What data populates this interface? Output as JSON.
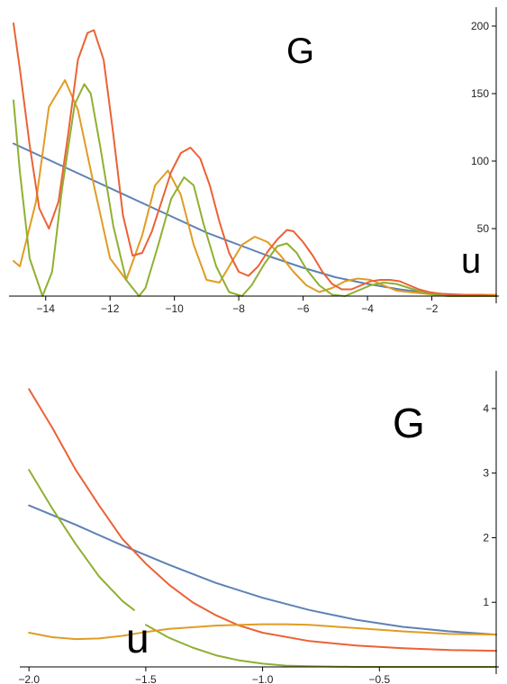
{
  "colors": {
    "blue": "#5E81B5",
    "orange": "#E19C24",
    "green": "#8FB032",
    "red": "#EB6235"
  },
  "chart_data": [
    {
      "type": "line",
      "xlim": [
        -15,
        0
      ],
      "ylim": [
        0,
        210
      ],
      "x_ticks": [
        -14,
        -12,
        -10,
        -8,
        -6,
        -4,
        -2
      ],
      "y_ticks": [
        50,
        100,
        150,
        200
      ],
      "annotations": [
        "G",
        "u"
      ],
      "grid": false,
      "legend": "none",
      "series": [
        {
          "color": "#5E81B5",
          "x": [
            -15,
            -14,
            -13,
            -12,
            -11,
            -10,
            -9,
            -8,
            -7,
            -6,
            -5,
            -4,
            -3,
            -2,
            -1,
            0
          ],
          "y": [
            113,
            102,
            91,
            80,
            69,
            58,
            47,
            38,
            29,
            21,
            14,
            9,
            5,
            2,
            1,
            0
          ]
        },
        {
          "color": "#E19C24",
          "x": [
            -15,
            -14.8,
            -14.3,
            -13.9,
            -13.4,
            -13.0,
            -12.5,
            -12.0,
            -11.5,
            -11.0,
            -10.6,
            -10.2,
            -9.8,
            -9.4,
            -9.0,
            -8.6,
            -8.2,
            -7.9,
            -7.5,
            -7.1,
            -6.7,
            -6.3,
            -5.9,
            -5.5,
            -5.1,
            -4.7,
            -4.3,
            -3.9,
            -3.5,
            -3.1,
            -2.7,
            -2.3,
            -1.9,
            -1.5,
            -1.0,
            -0.5,
            0
          ],
          "y": [
            26,
            22,
            70,
            140,
            160,
            138,
            82,
            28,
            12,
            45,
            82,
            93,
            75,
            38,
            12,
            10,
            26,
            38,
            44,
            40,
            30,
            18,
            8,
            3,
            6,
            11,
            13,
            12,
            8,
            4,
            3,
            2,
            1,
            1,
            1,
            1,
            1
          ]
        },
        {
          "color": "#8FB032",
          "x": [
            -15,
            -14.8,
            -14.5,
            -14.1,
            -13.8,
            -13.5,
            -13.1,
            -12.8,
            -12.6,
            -12.3,
            -11.9,
            -11.5,
            -11.1,
            -10.9,
            -10.5,
            -10.1,
            -9.7,
            -9.4,
            -9.1,
            -8.7,
            -8.3,
            -7.9,
            -7.6,
            -7.2,
            -6.8,
            -6.5,
            -6.2,
            -5.9,
            -5.5,
            -5.1,
            -4.7,
            -4.3,
            -3.9,
            -3.5,
            -3.1,
            -2.7,
            -2.3,
            -1.9,
            -1.5,
            -1.0,
            -0.5,
            0
          ],
          "y": [
            145,
            92,
            28,
            0,
            18,
            78,
            142,
            157,
            150,
            110,
            52,
            12,
            0,
            6,
            38,
            72,
            88,
            82,
            54,
            22,
            3,
            0,
            8,
            24,
            37,
            39,
            32,
            20,
            8,
            1,
            0,
            4,
            8,
            10,
            9,
            6,
            3,
            1,
            0,
            0,
            0,
            0
          ]
        },
        {
          "color": "#EB6235",
          "x": [
            -15,
            -14.8,
            -14.5,
            -14.2,
            -13.9,
            -13.6,
            -13.3,
            -13.0,
            -12.7,
            -12.5,
            -12.2,
            -11.9,
            -11.6,
            -11.3,
            -11.0,
            -10.7,
            -10.4,
            -10.1,
            -9.8,
            -9.5,
            -9.2,
            -8.9,
            -8.6,
            -8.3,
            -8.0,
            -7.7,
            -7.4,
            -7.1,
            -6.8,
            -6.5,
            -6.3,
            -6.0,
            -5.7,
            -5.4,
            -5.1,
            -4.8,
            -4.5,
            -4.2,
            -3.9,
            -3.6,
            -3.3,
            -3.0,
            -2.7,
            -2.4,
            -2.1,
            -1.8,
            -1.4,
            -1.0,
            -0.5,
            0
          ],
          "y": [
            202,
            168,
            112,
            65,
            50,
            70,
            120,
            175,
            195,
            197,
            175,
            120,
            60,
            30,
            32,
            48,
            70,
            92,
            106,
            110,
            102,
            82,
            55,
            32,
            18,
            15,
            22,
            33,
            42,
            49,
            48,
            40,
            30,
            18,
            9,
            5,
            5,
            8,
            11,
            12,
            12,
            11,
            8,
            5,
            3,
            2,
            1,
            1,
            1,
            0
          ]
        }
      ]
    },
    {
      "type": "line",
      "xlim": [
        -2.02,
        0
      ],
      "ylim": [
        0,
        4.5
      ],
      "x_ticks": [
        -2.0,
        -1.5,
        -1.0,
        -0.5
      ],
      "y_ticks": [
        1,
        2,
        3,
        4
      ],
      "annotations": [
        "G",
        "u"
      ],
      "grid": false,
      "legend": "none",
      "series": [
        {
          "color": "#5E81B5",
          "x": [
            -2.0,
            -1.8,
            -1.6,
            -1.4,
            -1.2,
            -1.0,
            -0.8,
            -0.6,
            -0.4,
            -0.2,
            0
          ],
          "y": [
            2.5,
            2.2,
            1.88,
            1.58,
            1.3,
            1.07,
            0.88,
            0.73,
            0.62,
            0.55,
            0.5
          ]
        },
        {
          "color": "#EB6235",
          "x": [
            -2.0,
            -1.9,
            -1.8,
            -1.7,
            -1.6,
            -1.5,
            -1.4,
            -1.3,
            -1.2,
            -1.1,
            -1.0,
            -0.8,
            -0.6,
            -0.4,
            -0.2,
            0
          ],
          "y": [
            4.3,
            3.7,
            3.05,
            2.5,
            1.98,
            1.6,
            1.27,
            1.0,
            0.8,
            0.64,
            0.53,
            0.4,
            0.33,
            0.29,
            0.26,
            0.25
          ]
        },
        {
          "color": "#8FB032",
          "x": [
            -2.0,
            -1.9,
            -1.8,
            -1.7,
            -1.6,
            -1.55
          ],
          "y": [
            3.05,
            2.45,
            1.9,
            1.4,
            1.02,
            0.88
          ]
        },
        {
          "color": "#8FB032",
          "x": [
            -1.5,
            -1.4,
            -1.3,
            -1.2,
            -1.1,
            -1.0,
            -0.9,
            -0.8,
            -0.6,
            -0.4,
            -0.2,
            0
          ],
          "y": [
            0.65,
            0.45,
            0.3,
            0.18,
            0.1,
            0.05,
            0.02,
            0.01,
            0.0,
            0.0,
            0.0,
            0.0
          ]
        },
        {
          "color": "#E19C24",
          "x": [
            -2.0,
            -1.9,
            -1.8,
            -1.7,
            -1.6,
            -1.5,
            -1.4,
            -1.2,
            -1.0,
            -0.9,
            -0.8,
            -0.6,
            -0.4,
            -0.2,
            0
          ],
          "y": [
            0.53,
            0.46,
            0.43,
            0.44,
            0.48,
            0.54,
            0.59,
            0.64,
            0.66,
            0.66,
            0.65,
            0.6,
            0.55,
            0.51,
            0.5
          ]
        }
      ]
    }
  ]
}
